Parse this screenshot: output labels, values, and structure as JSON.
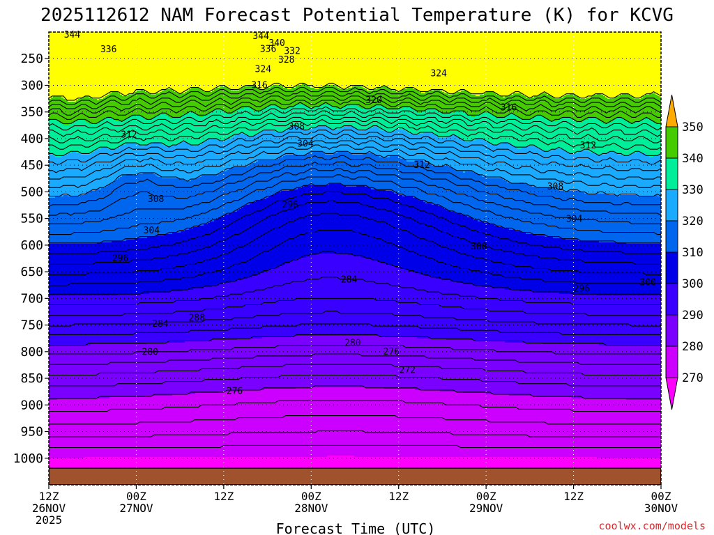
{
  "chart_data": {
    "type": "contour",
    "title": "2025112612 NAM Forecast Potential Temperature (K) for KCVG",
    "xlabel": "Forecast Time (UTC)",
    "ylabel": "",
    "y_ticks": [
      "250",
      "300",
      "350",
      "400",
      "450",
      "500",
      "550",
      "600",
      "650",
      "700",
      "750",
      "800",
      "850",
      "900",
      "950",
      "1000"
    ],
    "x_ticks": [
      {
        "hour": 0,
        "line1": "12Z",
        "line2": "26NOV",
        "line3": "2025"
      },
      {
        "hour": 12,
        "line1": "00Z",
        "line2": "27NOV"
      },
      {
        "hour": 24,
        "line1": "12Z"
      },
      {
        "hour": 36,
        "line1": "00Z",
        "line2": "28NOV"
      },
      {
        "hour": 48,
        "line1": "12Z"
      },
      {
        "hour": 60,
        "line1": "00Z",
        "line2": "29NOV"
      },
      {
        "hour": 72,
        "line1": "12Z"
      },
      {
        "hour": 84,
        "line1": "00Z",
        "line2": "30NOV"
      }
    ],
    "x_range_hours": [
      0,
      84
    ],
    "y_range_hPa": [
      200,
      1050
    ],
    "contour_interval_K": 2,
    "colorbar": {
      "levels": [
        270,
        280,
        290,
        300,
        310,
        320,
        330,
        340,
        350
      ],
      "labels": [
        "270",
        "280",
        "290",
        "300",
        "310",
        "320",
        "330",
        "340",
        "350"
      ],
      "colors": [
        "#ff00ff",
        "#cc00ff",
        "#7a00ff",
        "#3a00ff",
        "#0000e8",
        "#0066ee",
        "#1aaaff",
        "#00ee99",
        "#44cc00",
        "#ffff00",
        "#ffaa00"
      ]
    },
    "contour_labels": [
      {
        "text": "344",
        "hour": 3.2,
        "hPa": 205
      },
      {
        "text": "344",
        "hour": 29.1,
        "hPa": 208
      },
      {
        "text": "340",
        "hour": 31.3,
        "hPa": 221
      },
      {
        "text": "336",
        "hour": 8.2,
        "hPa": 233
      },
      {
        "text": "336",
        "hour": 30.1,
        "hPa": 232
      },
      {
        "text": "332",
        "hour": 33.4,
        "hPa": 236
      },
      {
        "text": "328",
        "hour": 32.6,
        "hPa": 252
      },
      {
        "text": "324",
        "hour": 29.4,
        "hPa": 270
      },
      {
        "text": "324",
        "hour": 53.5,
        "hPa": 278
      },
      {
        "text": "316",
        "hour": 28.9,
        "hPa": 300
      },
      {
        "text": "320",
        "hour": 44.6,
        "hPa": 328
      },
      {
        "text": "316",
        "hour": 63.1,
        "hPa": 342
      },
      {
        "text": "312",
        "hour": 11.0,
        "hPa": 393
      },
      {
        "text": "308",
        "hour": 34.0,
        "hPa": 378
      },
      {
        "text": "304",
        "hour": 35.2,
        "hPa": 410
      },
      {
        "text": "312",
        "hour": 74.0,
        "hPa": 413
      },
      {
        "text": "312",
        "hour": 51.2,
        "hPa": 450
      },
      {
        "text": "308",
        "hour": 14.7,
        "hPa": 514
      },
      {
        "text": "308",
        "hour": 69.5,
        "hPa": 490
      },
      {
        "text": "296",
        "hour": 33.1,
        "hPa": 524
      },
      {
        "text": "304",
        "hour": 14.1,
        "hPa": 573
      },
      {
        "text": "304",
        "hour": 72.1,
        "hPa": 551
      },
      {
        "text": "300",
        "hour": 59.0,
        "hPa": 603
      },
      {
        "text": "296",
        "hour": 9.8,
        "hPa": 625
      },
      {
        "text": "284",
        "hour": 41.2,
        "hPa": 665
      },
      {
        "text": "296",
        "hour": 73.1,
        "hPa": 682
      },
      {
        "text": "300",
        "hour": 82.2,
        "hPa": 670
      },
      {
        "text": "288",
        "hour": 20.3,
        "hPa": 737
      },
      {
        "text": "284",
        "hour": 15.3,
        "hPa": 748
      },
      {
        "text": "280",
        "hour": 41.7,
        "hPa": 784
      },
      {
        "text": "280",
        "hour": 13.9,
        "hPa": 801
      },
      {
        "text": "276",
        "hour": 47.0,
        "hPa": 800
      },
      {
        "text": "272",
        "hour": 49.2,
        "hPa": 835
      },
      {
        "text": "276",
        "hour": 25.5,
        "hPa": 874
      }
    ]
  },
  "credit": "coolwx.com/models"
}
